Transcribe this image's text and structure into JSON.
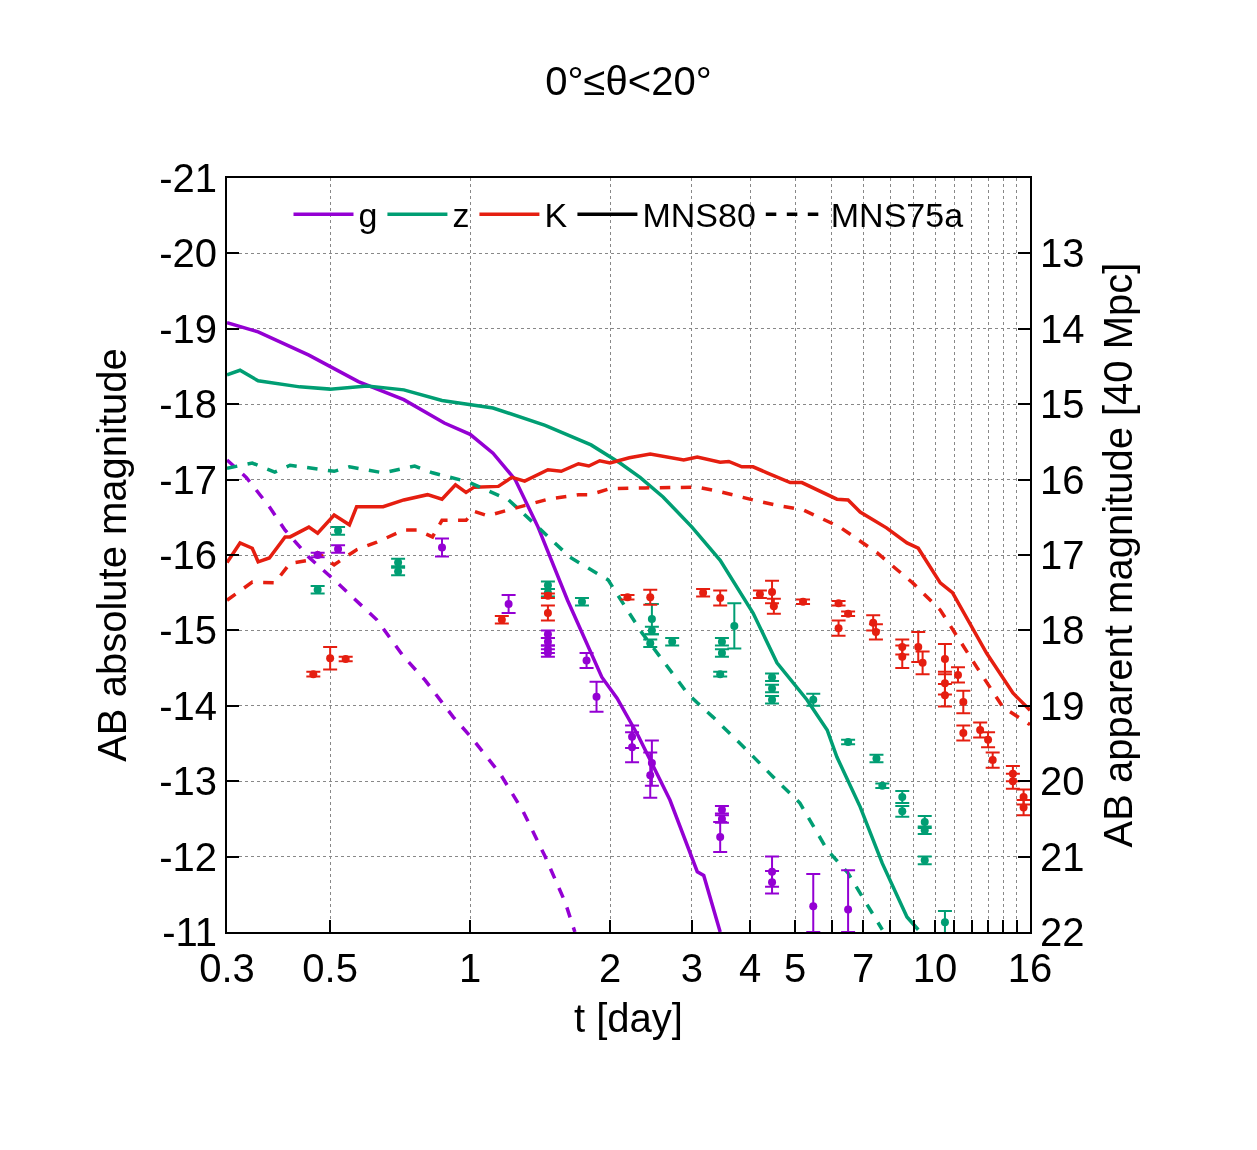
{
  "chart_data": {
    "type": "line",
    "title": "0°≤θ<20°",
    "xlabel": "t [day]",
    "ylabel": "AB absolute magnitude",
    "y2label": "AB apparent magnitude [40 Mpc]",
    "xlim": [
      0.3,
      16
    ],
    "ylim": [
      -11,
      -21
    ],
    "y2lim": [
      22,
      12
    ],
    "log": "x",
    "grid": true,
    "legend": "top",
    "xticks": [
      0.3,
      0.5,
      1,
      2,
      3,
      4,
      5,
      {
        "value": 6,
        "label": null
      },
      7,
      {
        "value": 8,
        "label": null
      },
      {
        "value": 9,
        "label": null
      },
      10,
      {
        "value": 11,
        "label": null
      },
      {
        "value": 12,
        "label": null
      },
      {
        "value": 13,
        "label": null
      },
      {
        "value": 14,
        "label": null
      },
      {
        "value": 15,
        "label": null
      },
      16
    ],
    "yticks": [
      -21,
      -20,
      -19,
      -18,
      -17,
      -16,
      -15,
      -14,
      -13,
      -12,
      -11
    ],
    "y2ticks": [
      13,
      14,
      15,
      16,
      17,
      18,
      19,
      20,
      21,
      22
    ],
    "series": [
      {
        "name": "g",
        "color": "#9400d3",
        "line_style": "solid",
        "x": [
          0.3,
          0.35,
          0.45,
          0.575,
          0.72,
          0.88,
          1.0,
          1.12,
          1.25,
          1.4,
          1.62,
          1.92,
          2.07,
          2.3,
          2.69,
          3.08,
          3.18,
          3.45
        ],
        "values": [
          -19.08,
          -18.96,
          -18.65,
          -18.3,
          -18.06,
          -17.75,
          -17.6,
          -17.35,
          -17.0,
          -16.37,
          -15.4,
          -14.38,
          -14.1,
          -13.6,
          -12.75,
          -11.8,
          -11.75,
          -11.0
        ]
      },
      {
        "name": "z",
        "color": "#009e73",
        "line_style": "solid",
        "x": [
          0.3,
          0.32,
          0.35,
          0.43,
          0.5,
          0.6,
          0.72,
          0.87,
          1.12,
          1.45,
          1.82,
          2.1,
          2.32,
          2.6,
          3.0,
          3.45,
          4.06,
          4.57,
          5.3,
          5.86,
          6.15,
          6.9,
          7.7,
          8.7,
          9.2
        ],
        "values": [
          -18.39,
          -18.45,
          -18.31,
          -18.23,
          -18.2,
          -18.24,
          -18.19,
          -18.05,
          -17.95,
          -17.72,
          -17.46,
          -17.22,
          -17.03,
          -16.77,
          -16.37,
          -15.93,
          -15.23,
          -14.57,
          -14.08,
          -13.68,
          -13.32,
          -12.66,
          -11.91,
          -11.2,
          -11.03
        ]
      },
      {
        "name": "K",
        "color": "#e51e10",
        "line_style": "solid",
        "x": [
          0.3,
          0.32,
          0.34,
          0.35,
          0.37,
          0.4,
          0.41,
          0.45,
          0.47,
          0.51,
          0.55,
          0.57,
          0.65,
          0.72,
          0.81,
          0.87,
          0.93,
          0.98,
          1.02,
          1.15,
          1.23,
          1.31,
          1.47,
          1.57,
          1.71,
          1.8,
          1.9,
          2.0,
          2.2,
          2.44,
          2.88,
          3.08,
          3.45,
          3.6,
          3.84,
          4.06,
          4.35,
          4.88,
          5.17,
          6.15,
          6.5,
          6.9,
          7.86,
          8.7,
          9.2,
          10.26,
          10.9,
          12.9,
          14.7,
          16
        ],
        "values": [
          -15.9,
          -16.16,
          -16.09,
          -15.91,
          -15.96,
          -16.24,
          -16.24,
          -16.37,
          -16.29,
          -16.53,
          -16.4,
          -16.64,
          -16.64,
          -16.73,
          -16.8,
          -16.74,
          -16.93,
          -16.83,
          -16.9,
          -16.91,
          -17.03,
          -16.98,
          -17.13,
          -17.11,
          -17.21,
          -17.18,
          -17.25,
          -17.22,
          -17.29,
          -17.34,
          -17.26,
          -17.3,
          -17.23,
          -17.24,
          -17.17,
          -17.17,
          -17.09,
          -16.96,
          -16.96,
          -16.74,
          -16.73,
          -16.57,
          -16.36,
          -16.16,
          -16.09,
          -15.63,
          -15.5,
          -14.7,
          -14.17,
          -13.94
        ]
      },
      {
        "color": "#9400d3",
        "line_style": "dashed",
        "x": [
          0.3,
          0.33,
          0.37,
          0.4,
          0.45,
          0.51,
          0.63,
          0.72,
          0.8,
          0.92,
          1.0,
          1.16,
          1.3,
          1.45,
          1.6,
          1.68
        ],
        "values": [
          -17.26,
          -17.03,
          -16.64,
          -16.33,
          -15.97,
          -15.67,
          -15.14,
          -14.65,
          -14.34,
          -13.85,
          -13.6,
          -13.1,
          -12.6,
          -12.0,
          -11.4,
          -11.0
        ]
      },
      {
        "color": "#009e73",
        "line_style": "dashed",
        "x": [
          0.3,
          0.34,
          0.38,
          0.41,
          0.51,
          0.55,
          0.65,
          0.76,
          0.83,
          0.99,
          1.21,
          1.4,
          1.64,
          1.98,
          2.34,
          2.47,
          2.93,
          3.08,
          3.33,
          3.94,
          4.48,
          5.12,
          5.86,
          6.5,
          7.7
        ],
        "values": [
          -17.15,
          -17.22,
          -17.1,
          -17.19,
          -17.11,
          -17.17,
          -17.09,
          -17.18,
          -17.09,
          -16.97,
          -16.73,
          -16.37,
          -15.97,
          -15.67,
          -14.97,
          -14.78,
          -14.17,
          -14.04,
          -13.85,
          -13.41,
          -13.06,
          -12.71,
          -12.09,
          -11.78,
          -11.03
        ]
      },
      {
        "color": "#e51e10",
        "line_style": "dashed",
        "x": [
          0.3,
          0.34,
          0.38,
          0.41,
          0.45,
          0.47,
          0.51,
          0.57,
          0.63,
          0.72,
          0.77,
          0.83,
          0.87,
          0.98,
          1.02,
          1.09,
          1.23,
          1.47,
          1.71,
          1.81,
          2.0,
          2.38,
          3.08,
          3.4,
          4.06,
          4.64,
          5.2,
          6.24,
          7.5,
          8.95,
          10.26,
          12.3,
          14.0,
          16
        ],
        "values": [
          -15.4,
          -15.64,
          -15.63,
          -15.89,
          -15.93,
          -16.03,
          -15.87,
          -16.07,
          -16.17,
          -16.33,
          -16.33,
          -16.24,
          -16.46,
          -16.46,
          -16.58,
          -16.52,
          -16.61,
          -16.74,
          -16.8,
          -16.8,
          -16.88,
          -16.89,
          -16.9,
          -16.85,
          -16.73,
          -16.65,
          -16.6,
          -16.37,
          -16.03,
          -15.63,
          -15.27,
          -14.51,
          -13.98,
          -13.75
        ]
      },
      {
        "name": "MNS80",
        "color": "#000000",
        "line_style": "solid",
        "values": [
          null
        ]
      },
      {
        "name": "MNS75a",
        "color": "#000000",
        "line_style": "dashed",
        "values": [
          null
        ]
      },
      {
        "type": "scatter",
        "marker": "circle",
        "color": "#9400d3",
        "x": [
          0.47,
          0.52,
          0.87,
          1.21,
          1.47,
          1.47,
          1.47,
          1.47,
          1.78,
          1.87,
          2.23,
          2.23,
          2.46,
          2.44,
          3.48,
          3.48,
          3.45,
          4.46,
          4.46,
          5.47,
          6.5
        ],
        "values": [
          -16.0,
          -16.08,
          -16.1,
          -15.35,
          -14.95,
          -14.85,
          -14.75,
          -14.7,
          -14.6,
          -14.12,
          -13.59,
          -13.45,
          -13.24,
          -13.08,
          -12.62,
          -12.5,
          -12.26,
          -11.8,
          -11.66,
          -11.34,
          -11.3
        ],
        "errors": [
          0.03,
          0.05,
          0.12,
          0.12,
          0.05,
          0.05,
          0.05,
          0.05,
          0.1,
          0.2,
          0.15,
          0.2,
          0.3,
          0.3,
          0.05,
          0.05,
          0.2,
          0.2,
          0.15,
          [
            -11.77,
            -11.0
          ],
          [
            -11.82,
            -11.0
          ]
        ]
      },
      {
        "type": "scatter",
        "marker": "circle",
        "color": "#009e73",
        "x": [
          0.47,
          0.52,
          0.7,
          0.7,
          1.47,
          1.47,
          1.74,
          2.46,
          2.46,
          2.44,
          2.72,
          3.7,
          3.48,
          3.48,
          3.45,
          4.46,
          4.46,
          4.46,
          5.47,
          6.5,
          7.48,
          7.7,
          8.5,
          8.5,
          9.5,
          9.5,
          9.5,
          10.5
        ],
        "values": [
          -15.54,
          -16.32,
          -15.9,
          -15.78,
          -15.6,
          -15.5,
          -15.38,
          -15.15,
          -15.0,
          -14.83,
          -14.85,
          -15.06,
          -14.85,
          -14.7,
          -14.42,
          -14.38,
          -14.23,
          -14.08,
          -14.08,
          -13.52,
          -13.3,
          -12.94,
          -12.79,
          -12.6,
          -12.46,
          -12.35,
          -11.95,
          -11.13
        ],
        "errors": [
          0.05,
          0.05,
          0.05,
          0.05,
          0.05,
          0.05,
          0.05,
          0.2,
          0.05,
          0.05,
          0.05,
          0.3,
          0.05,
          0.05,
          0.03,
          0.05,
          0.05,
          0.05,
          0.08,
          0.03,
          0.05,
          0.03,
          0.08,
          0.07,
          0.08,
          0.05,
          0.05,
          0.15
        ]
      },
      {
        "type": "scatter",
        "marker": "circle",
        "color": "#e51e10",
        "x": [
          0.46,
          0.5,
          0.54,
          1.17,
          1.47,
          1.47,
          2.18,
          2.44,
          3.45,
          3.17,
          4.2,
          4.46,
          4.5,
          5.2,
          6.2,
          6.5,
          6.2,
          7.36,
          7.46,
          8.5,
          8.5,
          9.2,
          9.4,
          10.5,
          10.5,
          10.5,
          11.2,
          11.5,
          11.5,
          12.5,
          13.0,
          13.3,
          14.7,
          14.7,
          15.5,
          15.5
        ],
        "values": [
          -14.42,
          -14.63,
          -14.62,
          -15.14,
          -15.46,
          -15.23,
          -15.44,
          -15.44,
          -15.43,
          -15.5,
          -15.48,
          -15.51,
          -15.32,
          -15.38,
          -15.36,
          -15.22,
          -15.03,
          -15.1,
          -14.98,
          -14.78,
          -14.65,
          -14.78,
          -14.57,
          -14.62,
          -14.3,
          -14.14,
          -14.41,
          -14.05,
          -13.64,
          -13.68,
          -13.55,
          -13.28,
          -13.1,
          -13.0,
          -12.79,
          -12.65
        ],
        "errors": [
          0.03,
          0.15,
          0.03,
          0.05,
          0.03,
          0.1,
          0.03,
          0.1,
          0.1,
          0.05,
          0.05,
          0.15,
          0.1,
          0.03,
          0.03,
          0.03,
          0.1,
          0.1,
          0.1,
          0.1,
          0.15,
          0.2,
          0.15,
          0.2,
          0.15,
          0.15,
          0.1,
          0.15,
          0.1,
          0.1,
          0.1,
          0.1,
          0.1,
          0.1,
          0.1,
          0.1
        ]
      }
    ]
  }
}
